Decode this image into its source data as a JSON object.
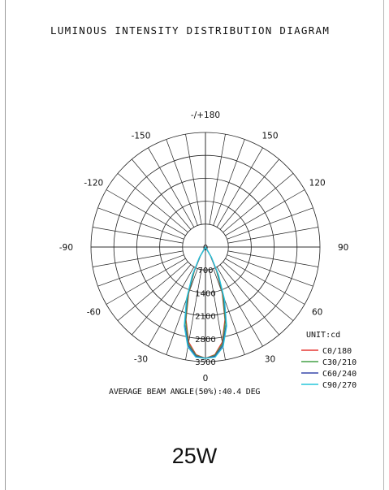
{
  "title": "LUMINOUS INTENSITY DISTRIBUTION DIAGRAM",
  "beam_text": "AVERAGE BEAM ANGLE(50%):40.4 DEG",
  "power_label": "25W",
  "chart_data": {
    "type": "polar",
    "unit": "UNIT:cd",
    "radial_ticks": [
      0,
      700,
      1400,
      2100,
      2800,
      3500
    ],
    "angle_labels": [
      "-/+180",
      "150",
      "120",
      "90",
      "60",
      "30",
      "0",
      "-30",
      "-60",
      "-90",
      "-120",
      "-150"
    ],
    "angle_values": [
      180,
      150,
      120,
      90,
      60,
      30,
      0,
      -30,
      -60,
      -90,
      -120,
      -150
    ],
    "series": [
      {
        "name": "C0/180",
        "color": "#e53935",
        "angles": [
          -30,
          -25,
          -20,
          -15,
          -10,
          -5,
          0,
          5,
          10,
          15,
          20,
          25,
          30
        ],
        "values": [
          300,
          800,
          1500,
          2300,
          2950,
          3300,
          3400,
          3300,
          2950,
          2300,
          1500,
          800,
          300
        ]
      },
      {
        "name": "C30/210",
        "color": "#43a047",
        "angles": [
          -30,
          -25,
          -20,
          -15,
          -10,
          -5,
          0,
          5,
          10,
          15,
          20,
          25,
          30
        ],
        "values": [
          320,
          820,
          1550,
          2350,
          3000,
          3320,
          3400,
          3320,
          3000,
          2350,
          1550,
          820,
          320
        ]
      },
      {
        "name": "C60/240",
        "color": "#3949ab",
        "angles": [
          -30,
          -25,
          -20,
          -15,
          -10,
          -5,
          0,
          5,
          10,
          15,
          20,
          25,
          30
        ],
        "values": [
          350,
          900,
          1650,
          2450,
          3050,
          3350,
          3400,
          3350,
          3050,
          2450,
          1650,
          900,
          350
        ]
      },
      {
        "name": "C90/270",
        "color": "#26c6da",
        "angles": [
          -30,
          -25,
          -20,
          -15,
          -10,
          -5,
          0,
          5,
          10,
          15,
          20,
          25,
          30
        ],
        "values": [
          380,
          950,
          1700,
          2500,
          3100,
          3380,
          3400,
          3380,
          3100,
          2500,
          1700,
          950,
          380
        ]
      }
    ]
  }
}
